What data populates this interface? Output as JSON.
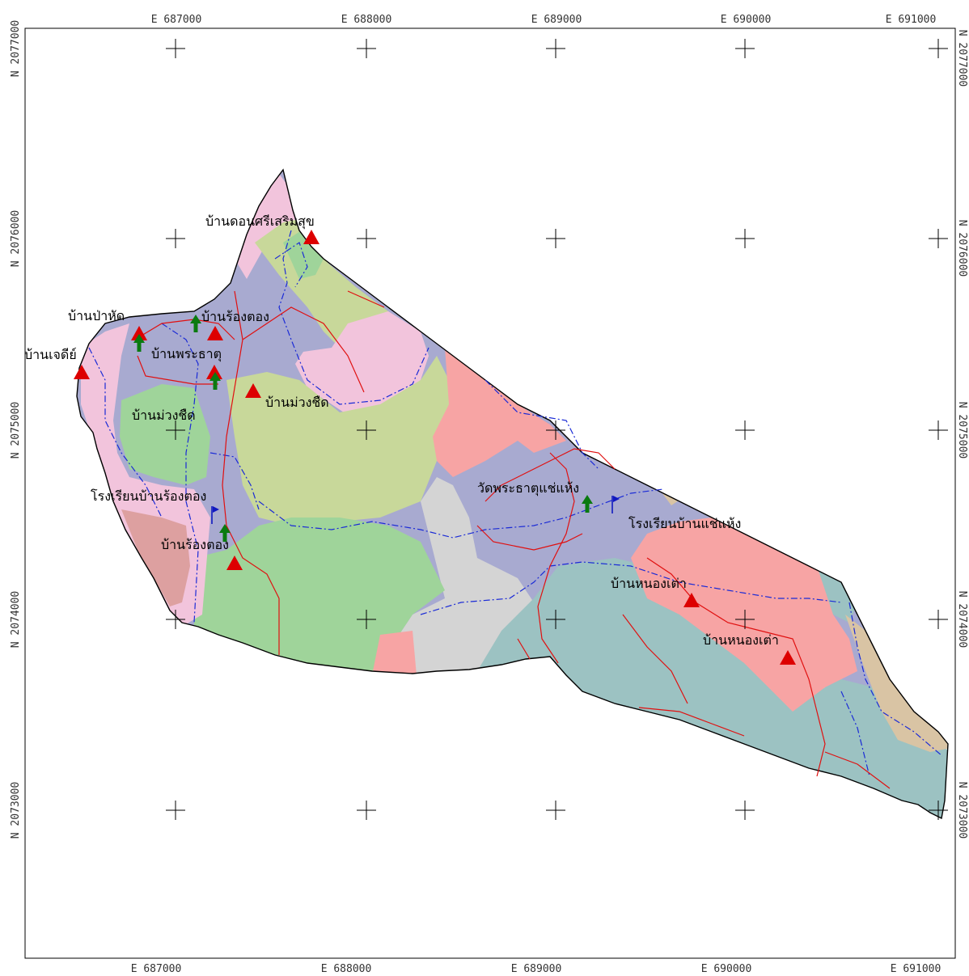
{
  "colors": {
    "boundary": "#000000",
    "road": "#e01010",
    "stream": "#1a2ad6",
    "village_marker": "#dd0000",
    "temple_marker": "#0a7a10",
    "school_marker": "#1018c0",
    "zone_pink": "#f2c4dc",
    "zone_lavender": "#a8aad0",
    "zone_lightgreen": "#9fd49a",
    "zone_yellowgreen": "#c8d89a",
    "zone_salmon": "#f7a4a4",
    "zone_gray": "#d4d4d4",
    "zone_teal": "#9cc2c2",
    "zone_tan": "#d9c4a4",
    "zone_rose": "#dda0a0"
  },
  "axes": {
    "easting": [
      "E 687000",
      "E 688000",
      "E 689000",
      "E 690000",
      "E 691000"
    ],
    "northing": [
      "N 2077000",
      "N 2076000",
      "N 2075000",
      "N 2074000",
      "N 2073000"
    ]
  },
  "places": [
    {
      "id": "ban-don-si-soem-suk",
      "label": "บ้านดอนศรีเสริมสุข",
      "type": "village"
    },
    {
      "id": "ban-pa-hat",
      "label": "บ้านป่าหัด",
      "type": "village"
    },
    {
      "id": "ban-rong-tong-north",
      "label": "บ้านร้องตอง",
      "type": "village"
    },
    {
      "id": "ban-chedi",
      "label": "บ้านเจดีย์",
      "type": "village"
    },
    {
      "id": "ban-phra-that",
      "label": "บ้านพระธาตุ",
      "type": "village"
    },
    {
      "id": "ban-muang-chit-east",
      "label": "บ้านม่วงชืด",
      "type": "village"
    },
    {
      "id": "ban-muang-chit-west",
      "label": "บ้านม่วงชืด",
      "type": "village"
    },
    {
      "id": "rong-rian-ban-rong-tong",
      "label": "โรงเรียนบ้านร้องตอง",
      "type": "school"
    },
    {
      "id": "ban-rong-tong-south",
      "label": "บ้านร้องตอง",
      "type": "village"
    },
    {
      "id": "wat-phra-that-chae-haeng",
      "label": "วัดพระธาตุแช่แห้ง",
      "type": "temple"
    },
    {
      "id": "rong-rian-ban-chae-haeng",
      "label": "โรงเรียนบ้านแช่แห้ง",
      "type": "school"
    },
    {
      "id": "ban-nong-tao-north",
      "label": "บ้านหนองเต่า",
      "type": "village"
    },
    {
      "id": "ban-nong-tao-south",
      "label": "บ้านหนองเต่า",
      "type": "village"
    }
  ]
}
